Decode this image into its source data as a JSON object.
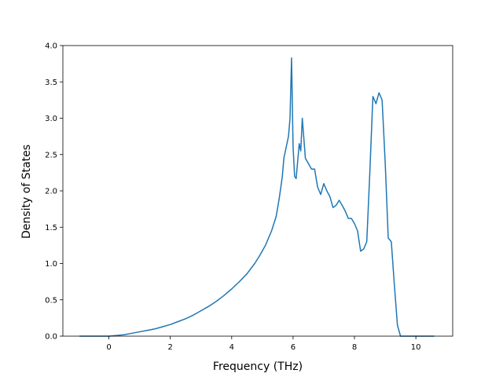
{
  "chart_data": {
    "type": "line",
    "title": "",
    "xlabel": "Frequency (THz)",
    "ylabel": "Density of States",
    "xlim": [
      -1.5,
      11.2
    ],
    "ylim": [
      0.0,
      4.0
    ],
    "grid": false,
    "xticks": [
      0,
      2,
      4,
      6,
      8,
      10
    ],
    "yticks": [
      0.0,
      0.5,
      1.0,
      1.5,
      2.0,
      2.5,
      3.0,
      3.5,
      4.0
    ],
    "xtick_labels": [
      "0",
      "2",
      "4",
      "6",
      "8",
      "10"
    ],
    "ytick_labels": [
      "0.0",
      "0.5",
      "1.0",
      "1.5",
      "2.0",
      "2.5",
      "3.0",
      "3.5",
      "4.0"
    ],
    "line_color": "#1f77b4",
    "series": [
      {
        "x": [
          -0.96,
          -0.5,
          0.0,
          0.25,
          0.5,
          0.75,
          1.0,
          1.25,
          1.5,
          1.75,
          2.0,
          2.25,
          2.5,
          2.75,
          3.0,
          3.25,
          3.5,
          3.75,
          4.0,
          4.25,
          4.5,
          4.75,
          4.9,
          5.1,
          5.3,
          5.45,
          5.55,
          5.65,
          5.7,
          5.75,
          5.8,
          5.85,
          5.9,
          5.95,
          6.0,
          6.05,
          6.1,
          6.2,
          6.25,
          6.3,
          6.4,
          6.6,
          6.7,
          6.8,
          6.9,
          7.0,
          7.1,
          7.2,
          7.3,
          7.4,
          7.5,
          7.6,
          7.7,
          7.8,
          7.9,
          8.0,
          8.1,
          8.2,
          8.3,
          8.4,
          8.5,
          8.6,
          8.7,
          8.8,
          8.9,
          9.0,
          9.1,
          9.2,
          9.3,
          9.4,
          9.5,
          9.6,
          9.7,
          9.8,
          10.0,
          10.6
        ],
        "y": [
          0.0,
          0.0,
          0.0,
          0.01,
          0.02,
          0.04,
          0.06,
          0.08,
          0.1,
          0.13,
          0.16,
          0.2,
          0.24,
          0.29,
          0.35,
          0.41,
          0.48,
          0.56,
          0.65,
          0.75,
          0.86,
          1.0,
          1.1,
          1.25,
          1.45,
          1.65,
          1.9,
          2.2,
          2.45,
          2.55,
          2.65,
          2.75,
          3.0,
          3.83,
          2.6,
          2.2,
          2.17,
          2.65,
          2.55,
          3.0,
          2.45,
          2.3,
          2.3,
          2.05,
          1.95,
          2.1,
          2.0,
          1.92,
          1.77,
          1.8,
          1.87,
          1.8,
          1.72,
          1.62,
          1.62,
          1.55,
          1.45,
          1.17,
          1.2,
          1.3,
          2.25,
          3.3,
          3.2,
          3.35,
          3.25,
          2.4,
          1.35,
          1.3,
          0.7,
          0.15,
          0.0,
          0.0,
          0.0,
          0.0,
          0.0,
          0.0
        ]
      }
    ]
  }
}
